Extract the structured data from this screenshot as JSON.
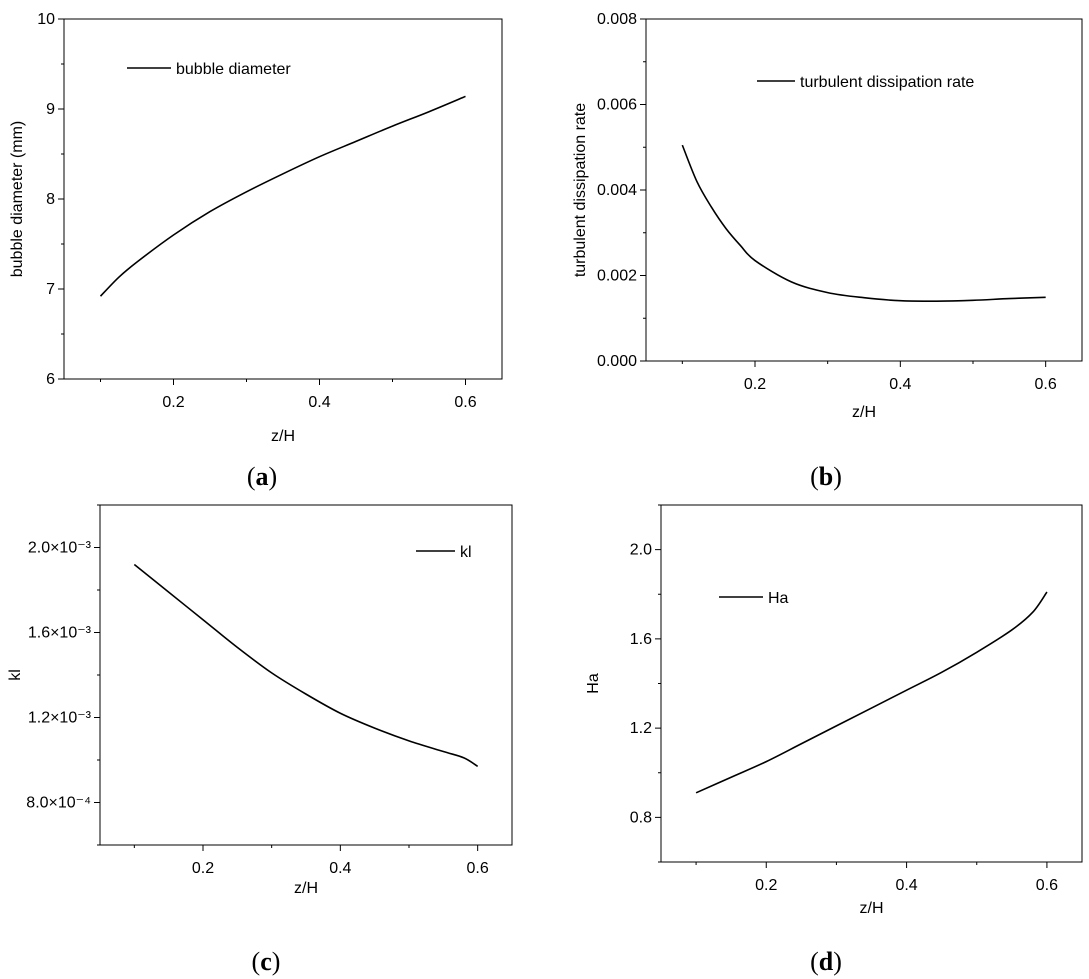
{
  "chart_data": [
    {
      "type": "line",
      "panel": "a",
      "caption_label": "a",
      "title": "",
      "xlabel": "z/H",
      "ylabel": "bubble diameter (mm)",
      "xlim": [
        0.05,
        0.65
      ],
      "ylim": [
        6,
        10
      ],
      "xticks": [
        {
          "v": 0.2,
          "label": "0.2"
        },
        {
          "v": 0.4,
          "label": "0.4"
        },
        {
          "v": 0.6,
          "label": "0.6"
        }
      ],
      "yticks": [
        {
          "v": 6,
          "label": "6"
        },
        {
          "v": 7,
          "label": "7"
        },
        {
          "v": 8,
          "label": "8"
        },
        {
          "v": 9,
          "label": "9"
        },
        {
          "v": 10,
          "label": "10"
        }
      ],
      "legend": "top-left",
      "series": [
        {
          "name": "bubble diameter",
          "x": [
            0.1,
            0.125,
            0.15,
            0.2,
            0.25,
            0.3,
            0.35,
            0.4,
            0.45,
            0.5,
            0.55,
            0.6
          ],
          "y": [
            6.92,
            7.13,
            7.3,
            7.6,
            7.86,
            8.08,
            8.28,
            8.47,
            8.64,
            8.81,
            8.97,
            9.14
          ]
        }
      ]
    },
    {
      "type": "line",
      "panel": "b",
      "caption_label": "b",
      "title": "",
      "xlabel": "z/H",
      "ylabel": "turbulent dissipation rate",
      "xlim": [
        0.05,
        0.65
      ],
      "ylim": [
        0,
        0.008
      ],
      "xticks": [
        {
          "v": 0.2,
          "label": "0.2"
        },
        {
          "v": 0.4,
          "label": "0.4"
        },
        {
          "v": 0.6,
          "label": "0.6"
        }
      ],
      "yticks": [
        {
          "v": 0,
          "label": "0.000"
        },
        {
          "v": 0.002,
          "label": "0.002"
        },
        {
          "v": 0.004,
          "label": "0.004"
        },
        {
          "v": 0.006,
          "label": "0.006"
        },
        {
          "v": 0.008,
          "label": "0.008"
        }
      ],
      "legend": "top-right",
      "series": [
        {
          "name": "turbulent dissipation rate",
          "x": [
            0.1,
            0.12,
            0.14,
            0.16,
            0.18,
            0.2,
            0.25,
            0.3,
            0.35,
            0.4,
            0.45,
            0.5,
            0.55,
            0.6
          ],
          "y": [
            0.00505,
            0.0042,
            0.0036,
            0.0031,
            0.0027,
            0.00235,
            0.00185,
            0.0016,
            0.00148,
            0.00141,
            0.0014,
            0.00142,
            0.00146,
            0.00149
          ]
        }
      ]
    },
    {
      "type": "line",
      "panel": "c",
      "caption_label": "c",
      "title": "",
      "xlabel": "z/H",
      "ylabel": "kl",
      "xlim": [
        0.05,
        0.65
      ],
      "ylim": [
        0.0006,
        0.0022
      ],
      "xticks": [
        {
          "v": 0.2,
          "label": "0.2"
        },
        {
          "v": 0.4,
          "label": "0.4"
        },
        {
          "v": 0.6,
          "label": "0.6"
        }
      ],
      "yticks": [
        {
          "v": 0.0008,
          "label": "8.0×10⁻⁴"
        },
        {
          "v": 0.0012,
          "label": "1.2×10⁻³"
        },
        {
          "v": 0.0016,
          "label": "1.6×10⁻³"
        },
        {
          "v": 0.002,
          "label": "2.0×10⁻³"
        }
      ],
      "legend": "top-right",
      "series": [
        {
          "name": "kl",
          "x": [
            0.1,
            0.15,
            0.2,
            0.25,
            0.3,
            0.35,
            0.4,
            0.45,
            0.5,
            0.55,
            0.58,
            0.6
          ],
          "y": [
            0.00192,
            0.00179,
            0.00166,
            0.00153,
            0.00141,
            0.00131,
            0.00122,
            0.00115,
            0.00109,
            0.00104,
            0.00101,
            0.00097
          ]
        }
      ]
    },
    {
      "type": "line",
      "panel": "d",
      "caption_label": "d",
      "title": "",
      "xlabel": "z/H",
      "ylabel": "Ha",
      "xlim": [
        0.05,
        0.65
      ],
      "ylim": [
        0.6,
        2.2
      ],
      "xticks": [
        {
          "v": 0.2,
          "label": "0.2"
        },
        {
          "v": 0.4,
          "label": "0.4"
        },
        {
          "v": 0.6,
          "label": "0.6"
        }
      ],
      "yticks": [
        {
          "v": 0.8,
          "label": "0.8"
        },
        {
          "v": 1.2,
          "label": "1.2"
        },
        {
          "v": 1.6,
          "label": "1.6"
        },
        {
          "v": 2.0,
          "label": "2.0"
        }
      ],
      "legend": "top-left",
      "series": [
        {
          "name": "Ha",
          "x": [
            0.1,
            0.15,
            0.2,
            0.25,
            0.3,
            0.35,
            0.4,
            0.45,
            0.5,
            0.55,
            0.58,
            0.6
          ],
          "y": [
            0.91,
            0.98,
            1.05,
            1.13,
            1.21,
            1.29,
            1.37,
            1.45,
            1.54,
            1.64,
            1.72,
            1.81
          ]
        }
      ]
    }
  ]
}
